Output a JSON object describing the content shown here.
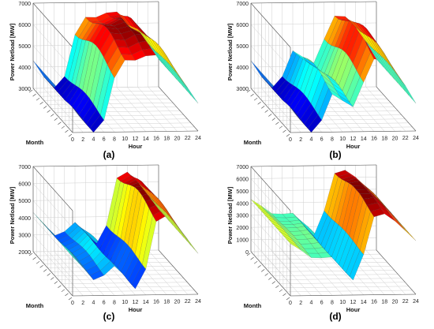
{
  "panels": [
    {
      "caption": "(a)",
      "zlabel": "Power Netload [MW]",
      "xlabel": "Hour",
      "ylabel": "Month",
      "zticks": [
        "3000",
        "4000",
        "5000",
        "6000",
        "7000"
      ],
      "xticks": [
        "0",
        "2",
        "4",
        "6",
        "8",
        "10",
        "12",
        "14",
        "16",
        "18",
        "20",
        "22",
        "24"
      ]
    },
    {
      "caption": "(b)",
      "zlabel": "Power Netload [MW]",
      "xlabel": "Hour",
      "ylabel": "Month",
      "zticks": [
        "3000",
        "4000",
        "5000",
        "6000",
        "7000"
      ],
      "xticks": [
        "0",
        "2",
        "4",
        "6",
        "8",
        "10",
        "12",
        "14",
        "16",
        "18",
        "20",
        "22",
        "24"
      ]
    },
    {
      "caption": "(c)",
      "zlabel": "Power Netload [MW]",
      "xlabel": "Hour",
      "ylabel": "Month",
      "zticks": [
        "2000",
        "3000",
        "4000",
        "5000",
        "6000",
        "7000"
      ],
      "xticks": [
        "0",
        "2",
        "4",
        "6",
        "8",
        "10",
        "12",
        "14",
        "16",
        "18",
        "20",
        "22",
        "24"
      ]
    },
    {
      "caption": "(d)",
      "zlabel": "Power Netload [MW]",
      "xlabel": "Hour",
      "ylabel": "Month",
      "zticks": [
        "0",
        "1000",
        "2000",
        "3000",
        "4000",
        "5000",
        "6000",
        "7000"
      ],
      "xticks": [
        "0",
        "2",
        "4",
        "6",
        "8",
        "10",
        "12",
        "14",
        "16",
        "18",
        "20",
        "22",
        "24"
      ]
    }
  ],
  "chart_data": [
    {
      "type": "surface",
      "xlabel": "Hour",
      "ylabel": "Month",
      "zlabel": "Power Netload [MW]",
      "xlim": [
        0,
        24
      ],
      "ylim": [
        1,
        12
      ],
      "zlim": [
        3000,
        7000
      ],
      "colormap": "jet",
      "hours": [
        0,
        2,
        4,
        6,
        8,
        10,
        12,
        14,
        16,
        18,
        20,
        22,
        24
      ],
      "profile_mid_month_MW": [
        4300,
        3600,
        3000,
        3700,
        5800,
        6700,
        6700,
        6900,
        6900,
        6200,
        5900,
        5100,
        4300
      ]
    },
    {
      "type": "surface",
      "xlabel": "Hour",
      "ylabel": "Month",
      "zlabel": "Power Netload [MW]",
      "xlim": [
        0,
        24
      ],
      "ylim": [
        1,
        12
      ],
      "zlim": [
        3000,
        7000
      ],
      "colormap": "jet",
      "hours": [
        0,
        2,
        4,
        6,
        8,
        10,
        12,
        14,
        16,
        18,
        20,
        22,
        24
      ],
      "profile_mid_month_MW": [
        4300,
        3600,
        3000,
        3700,
        5000,
        4700,
        4400,
        5600,
        6700,
        6600,
        6000,
        5200,
        4300
      ]
    },
    {
      "type": "surface",
      "xlabel": "Hour",
      "ylabel": "Month",
      "zlabel": "Power Netload [MW]",
      "xlim": [
        0,
        24
      ],
      "ylim": [
        1,
        12
      ],
      "zlim": [
        2000,
        7000
      ],
      "colormap": "jet",
      "hours": [
        0,
        2,
        4,
        6,
        8,
        10,
        12,
        14,
        16,
        18,
        20,
        22,
        24
      ],
      "profile_mid_month_MW": [
        4300,
        3700,
        3000,
        3300,
        3900,
        3300,
        2500,
        3700,
        6600,
        6900,
        6200,
        5300,
        4400
      ]
    },
    {
      "type": "surface",
      "xlabel": "Hour",
      "ylabel": "Month",
      "zlabel": "Power Netload [MW]",
      "xlim": [
        0,
        24
      ],
      "ylim": [
        1,
        12
      ],
      "zlim": [
        0,
        7000
      ],
      "colormap": "jet",
      "hours": [
        0,
        2,
        4,
        6,
        8,
        10,
        12,
        14,
        16,
        18,
        20,
        22,
        24
      ],
      "profile_mid_month_MW": [
        4300,
        3800,
        3200,
        3200,
        3300,
        2300,
        1300,
        3500,
        6700,
        6900,
        6200,
        5300,
        4400
      ]
    }
  ]
}
